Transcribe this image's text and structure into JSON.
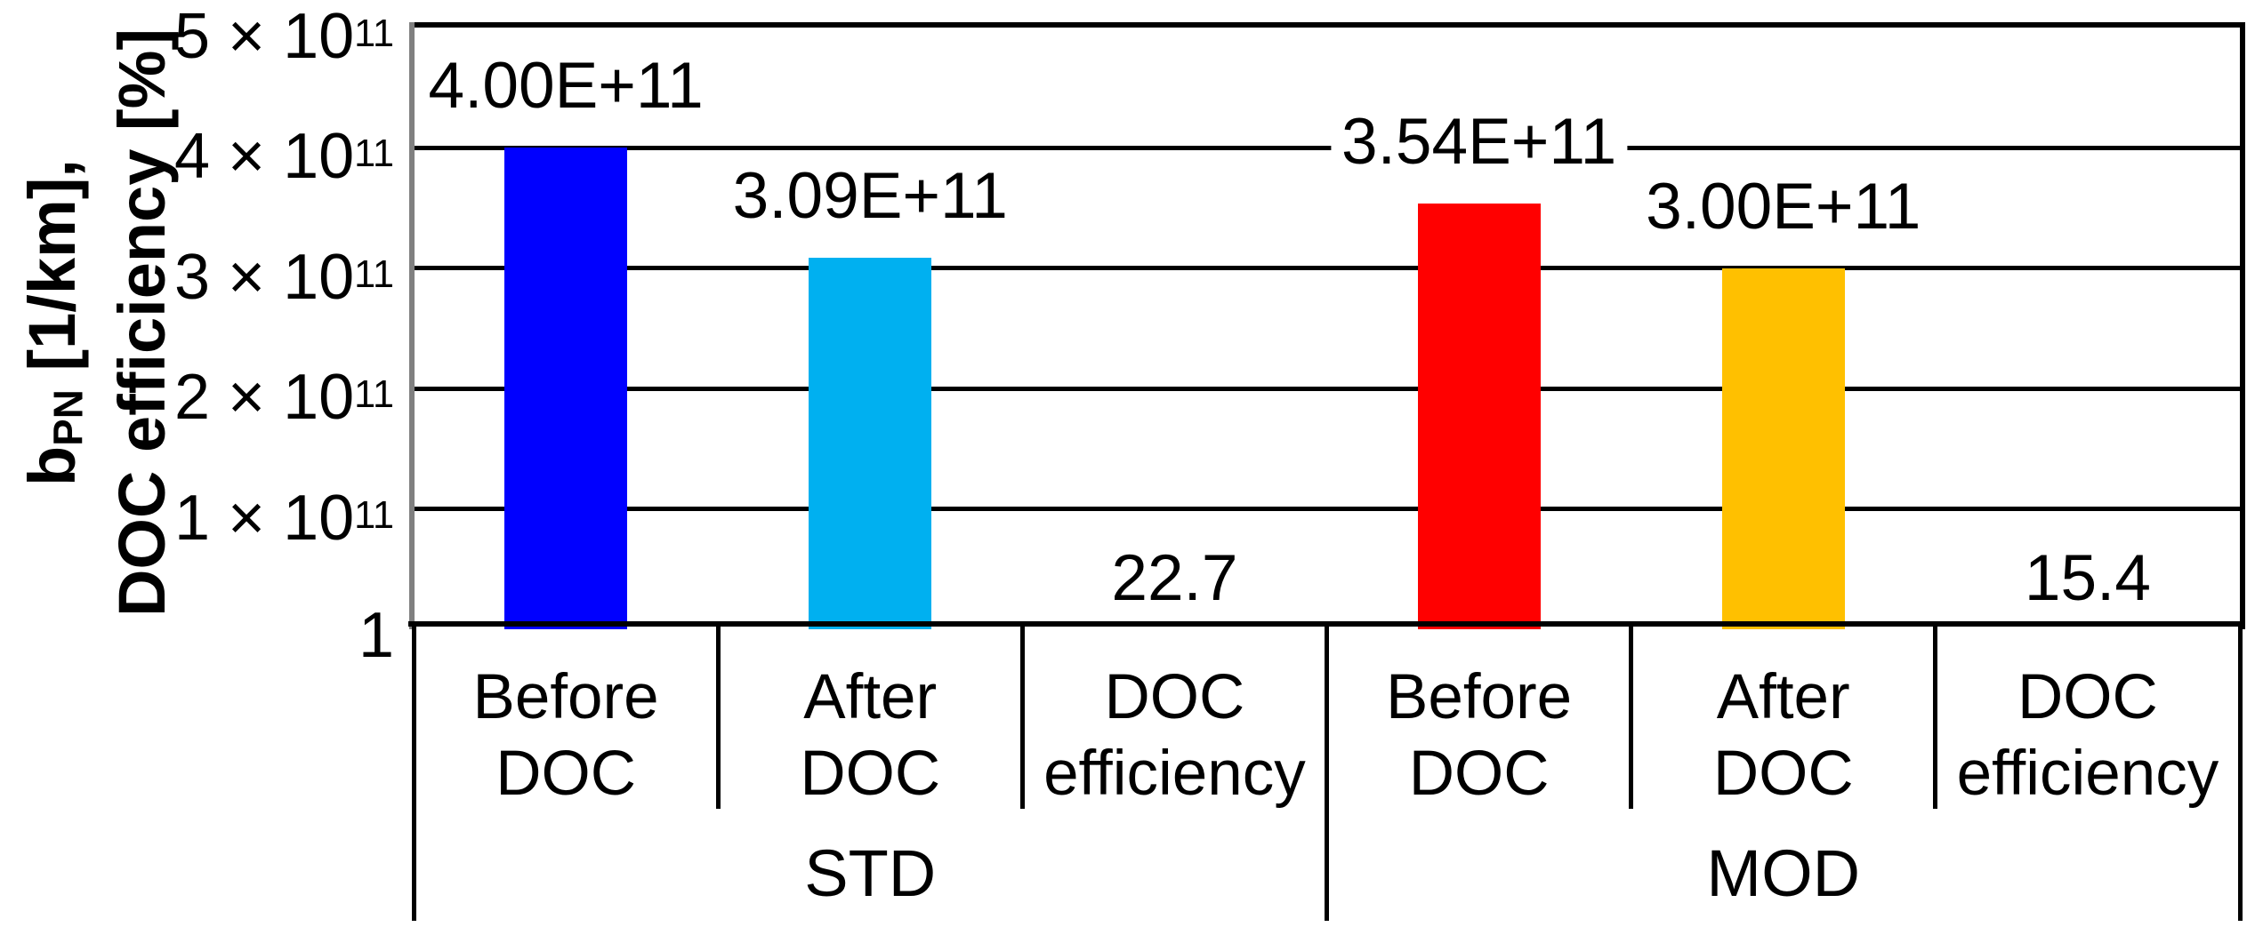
{
  "chart_data": {
    "type": "bar",
    "title": "",
    "background": "#FFFFFF",
    "y_axis": {
      "title": {
        "line1_base": "b",
        "line1_sub": "PN",
        "line1_rest": " [1/km],",
        "line2": "DOC efficiency [%]"
      },
      "min": 1,
      "max": 500000000000,
      "major_unit": 100000000000,
      "gridlines": true,
      "ticks": [
        {
          "value": 500000000000,
          "main": "5 × 10",
          "sup": "11"
        },
        {
          "value": 400000000000,
          "main": "4 × 10",
          "sup": "11"
        },
        {
          "value": 300000000000,
          "main": "3 × 10",
          "sup": "11"
        },
        {
          "value": 200000000000,
          "main": "2 × 10",
          "sup": "11"
        },
        {
          "value": 100000000000,
          "main": "1 × 10",
          "sup": "11"
        },
        {
          "value": 1,
          "main": "1",
          "sup": ""
        }
      ]
    },
    "x_axis": {
      "groups": [
        {
          "label": "STD",
          "categories": [
            [
              "Before",
              "DOC"
            ],
            [
              "After",
              "DOC"
            ],
            [
              "DOC",
              "efficiency"
            ]
          ]
        },
        {
          "label": "MOD",
          "categories": [
            [
              "Before",
              "DOC"
            ],
            [
              "After",
              "DOC"
            ],
            [
              "DOC",
              "efficiency"
            ]
          ]
        }
      ]
    },
    "points": [
      {
        "group": "STD",
        "category": "Before DOC",
        "value": 400000000000,
        "label": "4.00E+11",
        "color": "#0000FF"
      },
      {
        "group": "STD",
        "category": "After DOC",
        "value": 309000000000,
        "label": "3.09E+11",
        "color": "#00B0F0"
      },
      {
        "group": "STD",
        "category": "DOC efficiency",
        "value": 22.7,
        "label": "22.7",
        "color": null
      },
      {
        "group": "MOD",
        "category": "Before DOC",
        "value": 354000000000,
        "label": "3.54E+11",
        "color": "#FF0000"
      },
      {
        "group": "MOD",
        "category": "After DOC",
        "value": 300000000000,
        "label": "3.00E+11",
        "color": "#FFC000"
      },
      {
        "group": "MOD",
        "category": "DOC efficiency",
        "value": 15.4,
        "label": "15.4",
        "color": null
      }
    ],
    "colors": {
      "gridline": "#000000",
      "plot_border": "#000000",
      "value_axis_line": "#808080",
      "category_axis_line": "#000000"
    }
  }
}
